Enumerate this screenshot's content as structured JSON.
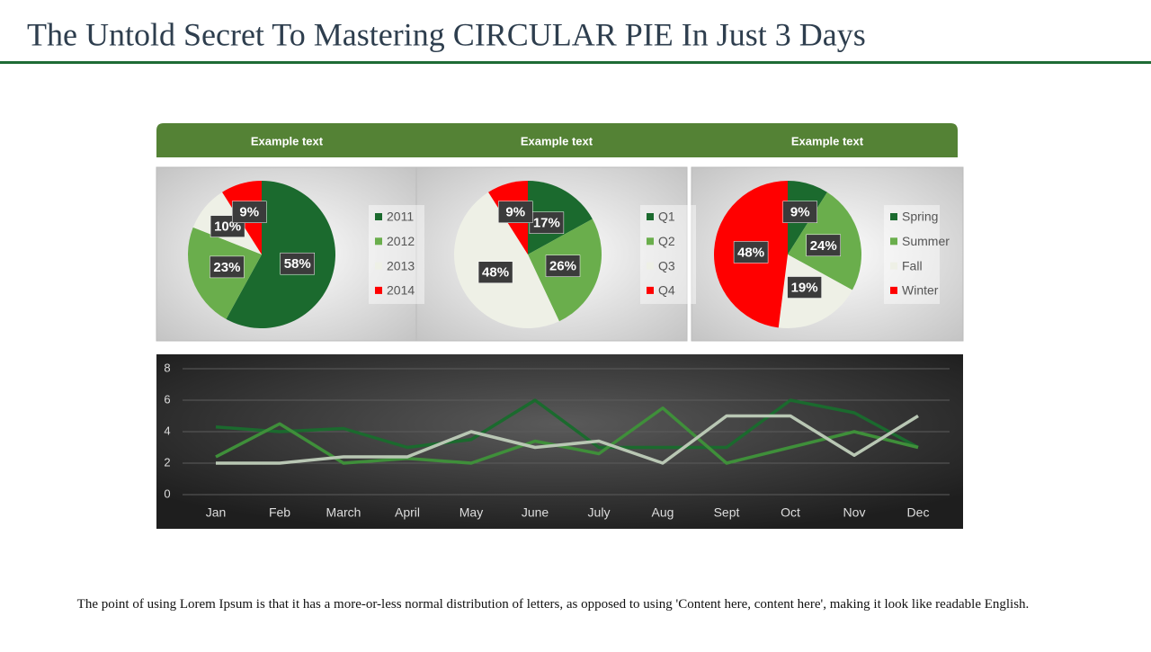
{
  "title": "The Untold Secret To Mastering CIRCULAR PIE In Just 3 Days",
  "headers": [
    "Example text",
    "Example text",
    "Example text"
  ],
  "footer": "The point of using Lorem Ipsum is that it has a more-or-less normal distribution of letters, as opposed to using 'Content here, content here', making it look like readable English.",
  "chart_data": [
    {
      "type": "pie",
      "categories": [
        "2011",
        "2012",
        "2013",
        "2014"
      ],
      "values": [
        58,
        23,
        10,
        9
      ],
      "value_labels": [
        "58%",
        "23%",
        "10%",
        "9%"
      ],
      "colors": [
        "#1b6a2e",
        "#6aae4c",
        "#eef0e6",
        "#ff0000"
      ]
    },
    {
      "type": "pie",
      "categories": [
        "Q1",
        "Q2",
        "Q3",
        "Q4"
      ],
      "values": [
        17,
        26,
        48,
        9
      ],
      "value_labels": [
        "17%",
        "26%",
        "48%",
        "9%"
      ],
      "colors": [
        "#1b6a2e",
        "#6aae4c",
        "#eef0e6",
        "#ff0000"
      ]
    },
    {
      "type": "pie",
      "categories": [
        "Spring",
        "Summer",
        "Fall",
        "Winter"
      ],
      "values": [
        9,
        24,
        19,
        48
      ],
      "value_labels": [
        "9%",
        "24%",
        "19%",
        "48%"
      ],
      "colors": [
        "#1b6a2e",
        "#6aae4c",
        "#eef0e6",
        "#ff0000"
      ]
    },
    {
      "type": "line",
      "categories": [
        "Jan",
        "Feb",
        "March",
        "April",
        "May",
        "June",
        "July",
        "Aug",
        "Sept",
        "Oct",
        "Nov",
        "Dec"
      ],
      "series": [
        {
          "color": "#1b6a2e",
          "values": [
            4.3,
            4.0,
            4.2,
            3.0,
            3.5,
            6.0,
            3.0,
            3.0,
            3.0,
            6.0,
            5.2,
            3.0
          ]
        },
        {
          "color": "#3f8f3a",
          "values": [
            2.4,
            4.5,
            2.0,
            2.3,
            2.0,
            3.4,
            2.6,
            5.5,
            2.0,
            3.0,
            4.0,
            3.0
          ]
        },
        {
          "color": "#b9c7b4",
          "values": [
            2.0,
            2.0,
            2.4,
            2.4,
            4.0,
            3.0,
            3.4,
            2.0,
            5.0,
            5.0,
            2.5,
            5.0
          ]
        }
      ],
      "ylim": [
        0,
        8
      ],
      "yticks": [
        0,
        2,
        4,
        6,
        8
      ],
      "grid": true
    }
  ]
}
